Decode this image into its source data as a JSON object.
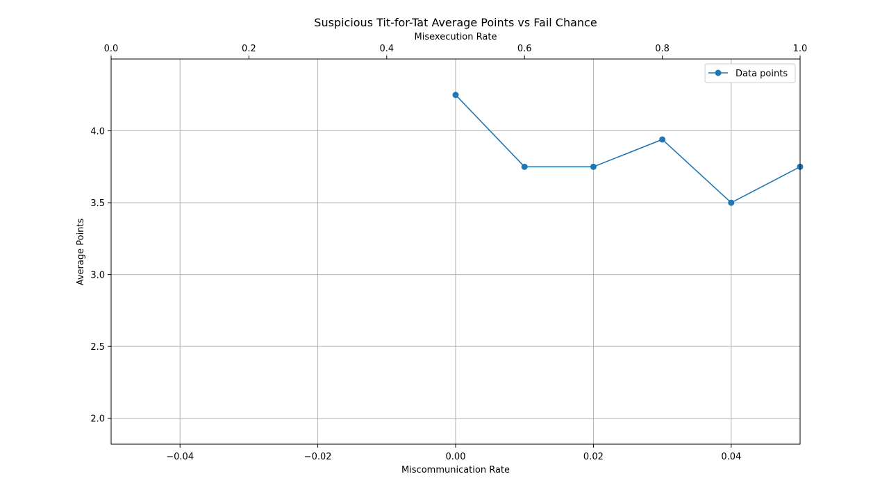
{
  "chart_data": {
    "type": "line",
    "title": "Suspicious Tit-for-Tat Average Points vs Fail Chance",
    "xlabel": "Miscommunication Rate",
    "ylabel": "Average Points",
    "x2label": "Misexecution Rate",
    "xlim": [
      -0.05,
      0.05
    ],
    "ylim": [
      1.82,
      4.5
    ],
    "x2lim": [
      0.0,
      1.0
    ],
    "xticks": [
      "-0.04",
      "-0.02",
      "0.00",
      "0.02",
      "0.04"
    ],
    "yticks": [
      "2.0",
      "2.5",
      "3.0",
      "3.5",
      "4.0"
    ],
    "x2ticks": [
      "0.0",
      "0.2",
      "0.4",
      "0.6",
      "0.8",
      "1.0"
    ],
    "grid": true,
    "legend_position": "top-right",
    "series": [
      {
        "name": "Data points",
        "color": "#1f77b4",
        "marker": "circle",
        "x": [
          0.0,
          0.01,
          0.02,
          0.03,
          0.04,
          0.05
        ],
        "values": [
          4.25,
          3.75,
          3.75,
          3.94,
          3.5,
          3.75
        ]
      }
    ]
  }
}
